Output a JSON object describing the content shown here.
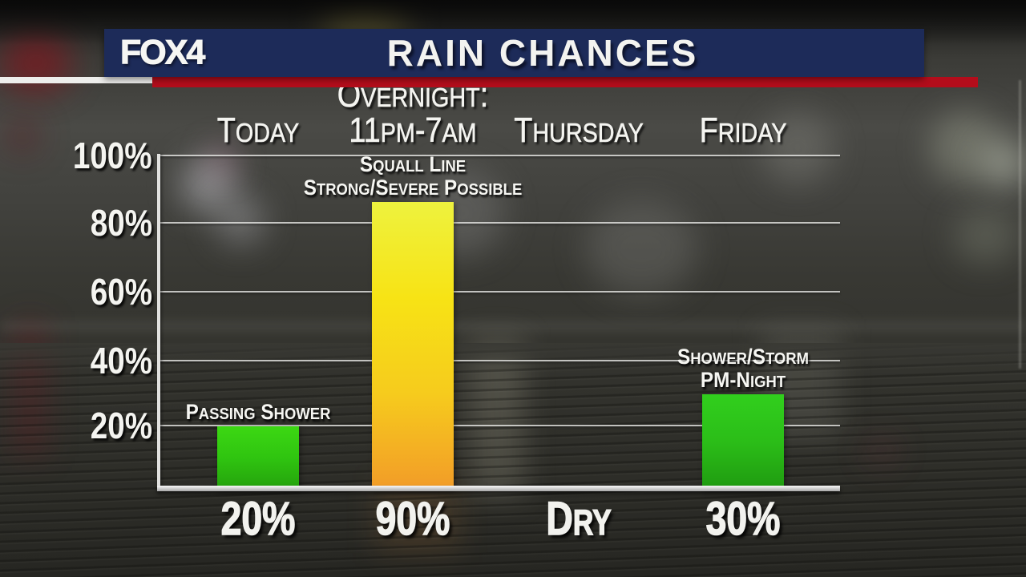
{
  "banner": {
    "station_logo": "FOX4",
    "title": "RAIN CHANCES",
    "colors": {
      "banner_bg": "#1d2b59",
      "stripe_red": "#b30d1b",
      "stripe_white": "#eeeeec"
    }
  },
  "chart_data": {
    "type": "bar",
    "title": "Rain Chances",
    "unit": "%",
    "ylim": [
      0,
      100
    ],
    "grid": true,
    "legend": "none",
    "yticks": [
      "100%",
      "80%",
      "60%",
      "40%",
      "20%"
    ],
    "categories": [
      "Today",
      "Overnight: 11pm-7am",
      "Thursday",
      "Friday"
    ],
    "values": [
      20,
      90,
      0,
      30
    ],
    "columns": [
      {
        "header_lines": [
          "Today"
        ],
        "value": 20,
        "value_label": "20%",
        "annotation_lines": [
          "Passing Shower"
        ],
        "bar_gradient": [
          "#3cd813",
          "#2fc410",
          "#24a00c"
        ]
      },
      {
        "header_lines": [
          "Overnight:",
          "11pm-7am"
        ],
        "value": 90,
        "value_label": "90%",
        "annotation_lines": [
          "Squall Line",
          "Strong/Severe Possible"
        ],
        "bar_gradient": [
          "#eef23e",
          "#f7e315",
          "#f6cb1d",
          "#f29b28"
        ]
      },
      {
        "header_lines": [
          "Thursday"
        ],
        "value": 0,
        "value_label": "Dry",
        "annotation_lines": [],
        "bar_gradient": []
      },
      {
        "header_lines": [
          "Friday"
        ],
        "value": 30,
        "value_label": "30%",
        "annotation_lines": [
          "Shower/Storm",
          "PM-Night"
        ],
        "bar_gradient": [
          "#31cf1d",
          "#2bbd18",
          "#1f9a10"
        ]
      }
    ]
  }
}
